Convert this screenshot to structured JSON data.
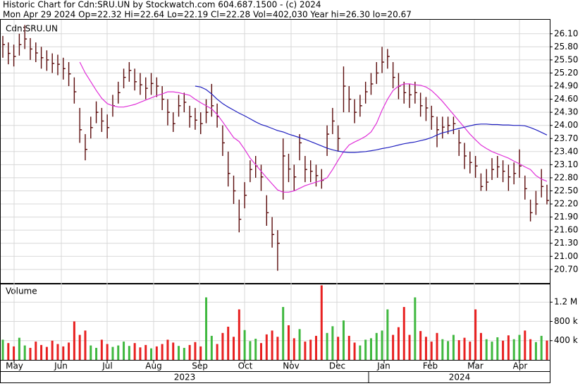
{
  "chart_data": {
    "type": "ohlc",
    "title": "Historic Chart for Cdn:SRU.UN by Stockwatch.com 604.687.1500 - (c) 2024",
    "subtitle": "Mon Apr 29 2024  Op=22.32  Hi=22.64  Lo=22.19  Cl=22.28  Vol=402,030  Year hi=26.30  lo=20.67",
    "symbol": "Cdn:SRU.UN",
    "bar_color": "#5a0a0a",
    "grid": true,
    "high": [
      26.05,
      25.9,
      25.85,
      26.1,
      26.3,
      26.0,
      25.9,
      25.8,
      25.72,
      25.65,
      25.62,
      25.55,
      25.45,
      25.1,
      24.4,
      23.8,
      24.2,
      24.55,
      24.4,
      24.25,
      24.7,
      25.0,
      25.3,
      25.45,
      25.3,
      25.2,
      25.1,
      25.2,
      25.1,
      24.9,
      24.6,
      24.3,
      24.7,
      24.75,
      24.45,
      24.4,
      24.3,
      24.6,
      24.95,
      24.5,
      24.0,
      23.4,
      22.85,
      22.3,
      22.7,
      23.2,
      23.3,
      23.1,
      22.4,
      21.9,
      21.6,
      23.7,
      23.35,
      23.1,
      23.8,
      23.3,
      23.2,
      23.1,
      23.0,
      24.0,
      24.4,
      24.0,
      25.35,
      24.9,
      24.6,
      24.7,
      25.0,
      25.2,
      25.45,
      25.8,
      25.75,
      25.45,
      25.2,
      25.0,
      24.95,
      25.0,
      24.75,
      24.65,
      24.45,
      24.2,
      24.2,
      24.2,
      24.2,
      23.9,
      23.6,
      23.4,
      23.3,
      22.9,
      23.0,
      23.25,
      23.3,
      23.2,
      23.1,
      23.15,
      23.45,
      22.85,
      22.3,
      22.5,
      23.0,
      22.64
    ],
    "low": [
      25.55,
      25.4,
      25.35,
      25.6,
      25.75,
      25.5,
      25.45,
      25.3,
      25.25,
      25.2,
      25.15,
      25.05,
      24.9,
      24.5,
      23.6,
      23.2,
      23.7,
      24.05,
      23.85,
      23.7,
      24.2,
      24.5,
      24.85,
      25.0,
      24.8,
      24.7,
      24.6,
      24.7,
      24.65,
      24.35,
      24.0,
      23.85,
      24.2,
      24.3,
      23.95,
      23.9,
      23.8,
      24.05,
      24.2,
      23.95,
      23.3,
      22.6,
      22.2,
      21.55,
      22.1,
      22.7,
      22.8,
      22.5,
      21.7,
      21.2,
      20.67,
      22.3,
      22.7,
      22.5,
      23.2,
      22.7,
      22.7,
      22.6,
      22.55,
      23.3,
      23.8,
      23.4,
      24.3,
      24.3,
      24.05,
      24.2,
      24.5,
      24.7,
      24.95,
      25.2,
      25.3,
      24.85,
      24.6,
      24.5,
      24.4,
      24.5,
      24.2,
      24.1,
      23.9,
      23.5,
      23.7,
      23.8,
      23.8,
      23.3,
      23.0,
      22.9,
      22.8,
      22.5,
      22.5,
      22.75,
      22.8,
      22.7,
      22.5,
      22.65,
      22.8,
      22.3,
      21.8,
      21.95,
      22.35,
      22.19
    ],
    "close": [
      25.85,
      25.65,
      25.58,
      25.85,
      25.98,
      25.75,
      25.66,
      25.55,
      25.5,
      25.42,
      25.4,
      25.3,
      25.18,
      24.77,
      23.9,
      23.45,
      23.95,
      24.3,
      24.1,
      23.95,
      24.45,
      24.75,
      25.1,
      25.26,
      25.0,
      24.93,
      24.85,
      24.96,
      24.9,
      24.6,
      24.3,
      24.04,
      24.45,
      24.53,
      24.2,
      24.12,
      24.04,
      24.3,
      24.45,
      24.2,
      23.6,
      22.9,
      22.5,
      21.85,
      22.4,
      22.99,
      23.07,
      22.82,
      22.0,
      21.5,
      21.3,
      23.3,
      23.0,
      22.82,
      23.6,
      22.99,
      22.95,
      22.85,
      22.74,
      23.8,
      24.1,
      23.7,
      24.9,
      24.6,
      24.3,
      24.45,
      24.77,
      24.95,
      25.2,
      25.45,
      25.58,
      25.1,
      24.9,
      24.75,
      24.7,
      24.75,
      24.45,
      24.4,
      24.2,
      23.9,
      23.96,
      24.0,
      24.04,
      23.6,
      23.3,
      23.15,
      23.07,
      22.6,
      22.7,
      22.99,
      23.05,
      22.95,
      22.82,
      22.9,
      23.07,
      22.55,
      22.0,
      22.2,
      22.6,
      22.28
    ],
    "ylim": [
      20.39,
      26.42
    ],
    "yticks": [
      {
        "value": 26.1,
        "label": "26.10"
      },
      {
        "value": 25.8,
        "label": "25.80"
      },
      {
        "value": 25.5,
        "label": "25.50"
      },
      {
        "value": 25.2,
        "label": "25.20"
      },
      {
        "value": 24.9,
        "label": "24.90"
      },
      {
        "value": 24.6,
        "label": "24.60"
      },
      {
        "value": 24.3,
        "label": "24.30"
      },
      {
        "value": 24.0,
        "label": "24.00"
      },
      {
        "value": 23.7,
        "label": "23.70"
      },
      {
        "value": 23.4,
        "label": "23.40"
      },
      {
        "value": 23.1,
        "label": "23.10"
      },
      {
        "value": 22.8,
        "label": "22.80"
      },
      {
        "value": 22.5,
        "label": "22.50"
      },
      {
        "value": 22.2,
        "label": "22.20"
      },
      {
        "value": 21.9,
        "label": "21.90"
      },
      {
        "value": 21.6,
        "label": "21.60"
      },
      {
        "value": 21.3,
        "label": "21.30"
      },
      {
        "value": 21.0,
        "label": "21.00"
      },
      {
        "value": 20.7,
        "label": "20.70"
      }
    ],
    "ma_series": [
      {
        "color": "#e030d8",
        "values": [
          null,
          null,
          null,
          null,
          null,
          null,
          null,
          null,
          null,
          null,
          null,
          null,
          null,
          null,
          25.45,
          25.2,
          25.0,
          24.8,
          24.62,
          24.5,
          24.45,
          24.42,
          24.42,
          24.45,
          24.48,
          24.53,
          24.58,
          24.63,
          24.68,
          24.72,
          24.77,
          24.77,
          24.75,
          24.72,
          24.69,
          24.6,
          24.52,
          24.45,
          24.38,
          24.25,
          24.08,
          23.9,
          23.72,
          23.63,
          23.45,
          23.25,
          23.1,
          22.95,
          22.8,
          22.66,
          22.52,
          22.47,
          22.47,
          22.5,
          22.56,
          22.62,
          22.66,
          22.7,
          22.74,
          22.8,
          22.99,
          23.2,
          23.4,
          23.55,
          23.62,
          23.68,
          23.75,
          23.85,
          24.05,
          24.35,
          24.6,
          24.8,
          24.9,
          24.95,
          24.95,
          24.93,
          24.92,
          24.88,
          24.8,
          24.68,
          24.55,
          24.4,
          24.25,
          24.1,
          23.95,
          23.8,
          23.67,
          23.55,
          23.47,
          23.4,
          23.35,
          23.3,
          23.25,
          23.18,
          23.12,
          23.05,
          22.99,
          22.85,
          22.77,
          22.72
        ]
      },
      {
        "color": "#2020c0",
        "values": [
          null,
          null,
          null,
          null,
          null,
          null,
          null,
          null,
          null,
          null,
          null,
          null,
          null,
          null,
          null,
          null,
          null,
          null,
          null,
          null,
          null,
          null,
          null,
          null,
          null,
          null,
          null,
          null,
          null,
          null,
          null,
          null,
          null,
          null,
          null,
          24.9,
          24.88,
          24.82,
          24.72,
          24.6,
          24.5,
          24.42,
          24.35,
          24.28,
          24.22,
          24.15,
          24.08,
          24.02,
          23.98,
          23.93,
          23.88,
          23.85,
          23.8,
          23.76,
          23.72,
          23.68,
          23.63,
          23.58,
          23.53,
          23.48,
          23.44,
          23.41,
          23.39,
          23.38,
          23.38,
          23.39,
          23.4,
          23.42,
          23.44,
          23.47,
          23.49,
          23.52,
          23.55,
          23.58,
          23.6,
          23.62,
          23.65,
          23.68,
          23.72,
          23.78,
          23.83,
          23.86,
          23.9,
          23.93,
          23.96,
          23.99,
          24.02,
          24.03,
          24.03,
          24.02,
          24.02,
          24.01,
          24.01,
          24.0,
          24.0,
          23.99,
          23.95,
          23.9,
          23.84,
          23.78
        ]
      }
    ],
    "volume": {
      "label": "Volume",
      "up_color": "#3fb83f",
      "down_color": "#e82020",
      "values": [
        420000,
        350000,
        280000,
        460000,
        300000,
        250000,
        380000,
        310000,
        270000,
        400000,
        330000,
        280000,
        360000,
        800000,
        520000,
        610000,
        300000,
        250000,
        420000,
        330000,
        270000,
        300000,
        380000,
        290000,
        350000,
        260000,
        310000,
        240000,
        280000,
        330000,
        420000,
        360000,
        290000,
        250000,
        310000,
        370000,
        280000,
        1300000,
        500000,
        330000,
        560000,
        690000,
        480000,
        1050000,
        620000,
        390000,
        440000,
        350000,
        530000,
        610000,
        480000,
        1100000,
        720000,
        450000,
        640000,
        380000,
        420000,
        500000,
        1550000,
        560000,
        700000,
        480000,
        820000,
        500000,
        360000,
        300000,
        420000,
        450000,
        560000,
        610000,
        1050000,
        520000,
        680000,
        1100000,
        520000,
        1300000,
        600000,
        480000,
        380000,
        560000,
        430000,
        390000,
        520000,
        410000,
        460000,
        380000,
        1050000,
        560000,
        430000,
        380000,
        470000,
        400000,
        510000,
        430000,
        520000,
        610000,
        430000,
        370000,
        500000,
        402030
      ],
      "ylim": [
        0,
        1570000
      ],
      "yticks": [
        {
          "value": 1200000,
          "label": "1.2 M"
        },
        {
          "value": 800000,
          "label": "800 k"
        },
        {
          "value": 400000,
          "label": "400 k"
        }
      ]
    },
    "months": [
      "May",
      "Jun",
      "Jul",
      "Aug",
      "Sep",
      "Oct",
      "Nov",
      "Dec",
      "Jan",
      "Feb",
      "Mar",
      "Apr"
    ],
    "years": [
      "2023",
      "2024"
    ]
  }
}
